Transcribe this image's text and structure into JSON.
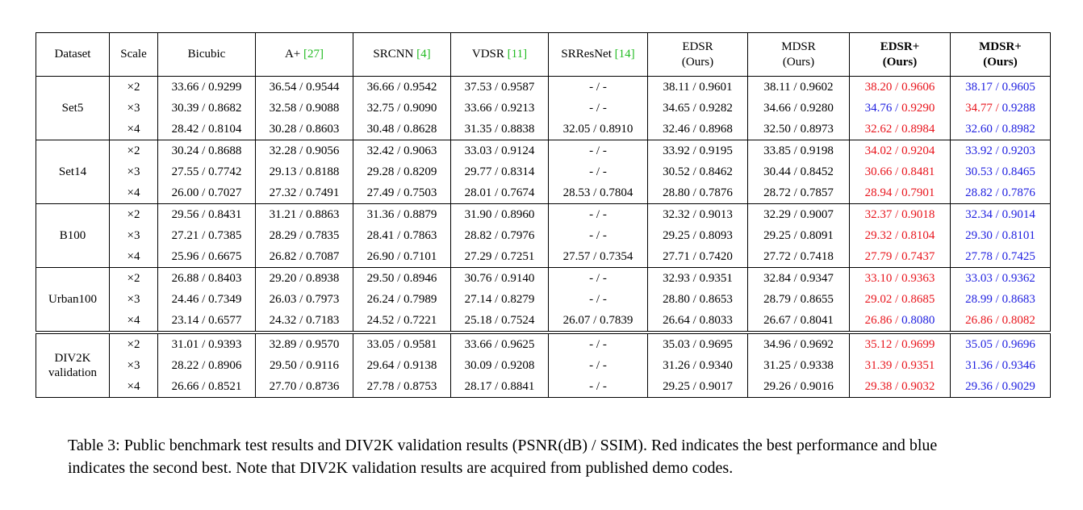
{
  "table": {
    "columns": [
      {
        "name": "Dataset"
      },
      {
        "name": "Scale"
      },
      {
        "name": "Bicubic"
      },
      {
        "name": "A+",
        "ref": "[27]"
      },
      {
        "name": "SRCNN",
        "ref": "[4]"
      },
      {
        "name": "VDSR",
        "ref": "[11]"
      },
      {
        "name": "SRResNet",
        "ref": "[14]"
      },
      {
        "name": "EDSR",
        "sub": "(Ours)"
      },
      {
        "name": "MDSR",
        "sub": "(Ours)"
      },
      {
        "name": "EDSR+",
        "sub": "(Ours)",
        "bold": true
      },
      {
        "name": "MDSR+",
        "sub": "(Ours)",
        "bold": true
      }
    ],
    "groups": [
      {
        "dataset": "Set5",
        "rows": [
          {
            "scale": "×2",
            "cells": [
              "33.66 / 0.9299",
              "36.54 / 0.9544",
              "36.66 / 0.9542",
              "37.53 / 0.9587",
              "- / -",
              "38.11 / 0.9601",
              "38.11 / 0.9602",
              [
                {
                  "text": "38.20 / ",
                  "color": "#e8141c"
                },
                {
                  "text": "0.9606",
                  "color": "#e8141c"
                }
              ],
              [
                {
                  "text": "38.17 / ",
                  "color": "#2020e0"
                },
                {
                  "text": "0.9605",
                  "color": "#2020e0"
                }
              ]
            ]
          },
          {
            "scale": "×3",
            "cells": [
              "30.39 / 0.8682",
              "32.58 / 0.9088",
              "32.75 / 0.9090",
              "33.66 / 0.9213",
              "- / -",
              "34.65 / 0.9282",
              "34.66 / 0.9280",
              [
                {
                  "text": "34.76 / ",
                  "color": "#2020e0"
                },
                {
                  "text": "0.9290",
                  "color": "#e8141c"
                }
              ],
              [
                {
                  "text": "34.77 / ",
                  "color": "#e8141c"
                },
                {
                  "text": "0.9288",
                  "color": "#2020e0"
                }
              ]
            ]
          },
          {
            "scale": "×4",
            "cells": [
              "28.42 / 0.8104",
              "30.28 / 0.8603",
              "30.48 / 0.8628",
              "31.35 / 0.8838",
              "32.05 / 0.8910",
              "32.46 / 0.8968",
              "32.50 / 0.8973",
              [
                {
                  "text": "32.62 / ",
                  "color": "#e8141c"
                },
                {
                  "text": "0.8984",
                  "color": "#e8141c"
                }
              ],
              [
                {
                  "text": "32.60 / ",
                  "color": "#2020e0"
                },
                {
                  "text": "0.8982",
                  "color": "#2020e0"
                }
              ]
            ]
          }
        ]
      },
      {
        "dataset": "Set14",
        "rows": [
          {
            "scale": "×2",
            "cells": [
              "30.24 / 0.8688",
              "32.28 / 0.9056",
              "32.42 / 0.9063",
              "33.03 / 0.9124",
              "- / -",
              "33.92 / 0.9195",
              "33.85 / 0.9198",
              [
                {
                  "text": "34.02 / ",
                  "color": "#e8141c"
                },
                {
                  "text": "0.9204",
                  "color": "#e8141c"
                }
              ],
              [
                {
                  "text": "33.92 / ",
                  "color": "#2020e0"
                },
                {
                  "text": "0.9203",
                  "color": "#2020e0"
                }
              ]
            ]
          },
          {
            "scale": "×3",
            "cells": [
              "27.55 / 0.7742",
              "29.13 / 0.8188",
              "29.28 / 0.8209",
              "29.77 / 0.8314",
              "- / -",
              "30.52 / 0.8462",
              "30.44 / 0.8452",
              [
                {
                  "text": "30.66 / ",
                  "color": "#e8141c"
                },
                {
                  "text": "0.8481",
                  "color": "#e8141c"
                }
              ],
              [
                {
                  "text": "30.53 / ",
                  "color": "#2020e0"
                },
                {
                  "text": "0.8465",
                  "color": "#2020e0"
                }
              ]
            ]
          },
          {
            "scale": "×4",
            "cells": [
              "26.00 / 0.7027",
              "27.32 / 0.7491",
              "27.49 / 0.7503",
              "28.01 / 0.7674",
              "28.53 / 0.7804",
              "28.80 / 0.7876",
              "28.72 / 0.7857",
              [
                {
                  "text": "28.94 / ",
                  "color": "#e8141c"
                },
                {
                  "text": "0.7901",
                  "color": "#e8141c"
                }
              ],
              [
                {
                  "text": "28.82 / ",
                  "color": "#2020e0"
                },
                {
                  "text": "0.7876",
                  "color": "#2020e0"
                }
              ]
            ]
          }
        ]
      },
      {
        "dataset": "B100",
        "rows": [
          {
            "scale": "×2",
            "cells": [
              "29.56 / 0.8431",
              "31.21 / 0.8863",
              "31.36 / 0.8879",
              "31.90 / 0.8960",
              "- / -",
              "32.32 / 0.9013",
              "32.29 / 0.9007",
              [
                {
                  "text": "32.37 / ",
                  "color": "#e8141c"
                },
                {
                  "text": "0.9018",
                  "color": "#e8141c"
                }
              ],
              [
                {
                  "text": "32.34 / ",
                  "color": "#2020e0"
                },
                {
                  "text": "0.9014",
                  "color": "#2020e0"
                }
              ]
            ]
          },
          {
            "scale": "×3",
            "cells": [
              "27.21 / 0.7385",
              "28.29 / 0.7835",
              "28.41 / 0.7863",
              "28.82 / 0.7976",
              "- / -",
              "29.25 / 0.8093",
              "29.25 / 0.8091",
              [
                {
                  "text": "29.32 / ",
                  "color": "#e8141c"
                },
                {
                  "text": "0.8104",
                  "color": "#e8141c"
                }
              ],
              [
                {
                  "text": "29.30 / ",
                  "color": "#2020e0"
                },
                {
                  "text": "0.8101",
                  "color": "#2020e0"
                }
              ]
            ]
          },
          {
            "scale": "×4",
            "cells": [
              "25.96 / 0.6675",
              "26.82 / 0.7087",
              "26.90 / 0.7101",
              "27.29 / 0.7251",
              "27.57 / 0.7354",
              "27.71 / 0.7420",
              "27.72 / 0.7418",
              [
                {
                  "text": "27.79 / ",
                  "color": "#e8141c"
                },
                {
                  "text": "0.7437",
                  "color": "#e8141c"
                }
              ],
              [
                {
                  "text": "27.78 / ",
                  "color": "#2020e0"
                },
                {
                  "text": "0.7425",
                  "color": "#2020e0"
                }
              ]
            ]
          }
        ]
      },
      {
        "dataset": "Urban100",
        "rows": [
          {
            "scale": "×2",
            "cells": [
              "26.88 / 0.8403",
              "29.20 / 0.8938",
              "29.50 / 0.8946",
              "30.76 / 0.9140",
              "- / -",
              "32.93 / 0.9351",
              "32.84 / 0.9347",
              [
                {
                  "text": "33.10 / ",
                  "color": "#e8141c"
                },
                {
                  "text": "0.9363",
                  "color": "#e8141c"
                }
              ],
              [
                {
                  "text": "33.03 / ",
                  "color": "#2020e0"
                },
                {
                  "text": "0.9362",
                  "color": "#2020e0"
                }
              ]
            ]
          },
          {
            "scale": "×3",
            "cells": [
              "24.46 / 0.7349",
              "26.03 / 0.7973",
              "26.24 / 0.7989",
              "27.14 / 0.8279",
              "- / -",
              "28.80 / 0.8653",
              "28.79 / 0.8655",
              [
                {
                  "text": "29.02 / ",
                  "color": "#e8141c"
                },
                {
                  "text": "0.8685",
                  "color": "#e8141c"
                }
              ],
              [
                {
                  "text": "28.99 / ",
                  "color": "#2020e0"
                },
                {
                  "text": "0.8683",
                  "color": "#2020e0"
                }
              ]
            ]
          },
          {
            "scale": "×4",
            "cells": [
              "23.14 / 0.6577",
              "24.32 / 0.7183",
              "24.52 / 0.7221",
              "25.18 / 0.7524",
              "26.07 / 0.7839",
              "26.64 / 0.8033",
              "26.67 / 0.8041",
              [
                {
                  "text": "26.86 / ",
                  "color": "#e8141c"
                },
                {
                  "text": "0.8080",
                  "color": "#2020e0"
                }
              ],
              [
                {
                  "text": "26.86 / ",
                  "color": "#e8141c"
                },
                {
                  "text": "0.8082",
                  "color": "#e8141c"
                }
              ]
            ]
          }
        ]
      },
      {
        "dataset": "DIV2K validation",
        "rows": [
          {
            "scale": "×2",
            "cells": [
              "31.01 / 0.9393",
              "32.89 / 0.9570",
              "33.05 / 0.9581",
              "33.66 / 0.9625",
              "- / -",
              "35.03 / 0.9695",
              "34.96 / 0.9692",
              [
                {
                  "text": "35.12 / ",
                  "color": "#e8141c"
                },
                {
                  "text": "0.9699",
                  "color": "#e8141c"
                }
              ],
              [
                {
                  "text": "35.05 / ",
                  "color": "#2020e0"
                },
                {
                  "text": "0.9696",
                  "color": "#2020e0"
                }
              ]
            ]
          },
          {
            "scale": "×3",
            "cells": [
              "28.22 / 0.8906",
              "29.50 / 0.9116",
              "29.64 / 0.9138",
              "30.09 / 0.9208",
              "- / -",
              "31.26 / 0.9340",
              "31.25 / 0.9338",
              [
                {
                  "text": "31.39 / ",
                  "color": "#e8141c"
                },
                {
                  "text": "0.9351",
                  "color": "#e8141c"
                }
              ],
              [
                {
                  "text": "31.36 / ",
                  "color": "#2020e0"
                },
                {
                  "text": "0.9346",
                  "color": "#2020e0"
                }
              ]
            ]
          },
          {
            "scale": "×4",
            "cells": [
              "26.66 / 0.8521",
              "27.70 / 0.8736",
              "27.78 / 0.8753",
              "28.17 / 0.8841",
              "- / -",
              "29.25 / 0.9017",
              "29.26 / 0.9016",
              [
                {
                  "text": "29.38 / ",
                  "color": "#e8141c"
                },
                {
                  "text": "0.9032",
                  "color": "#e8141c"
                }
              ],
              [
                {
                  "text": "29.36 / ",
                  "color": "#2020e0"
                },
                {
                  "text": "0.9029",
                  "color": "#2020e0"
                }
              ]
            ]
          }
        ]
      }
    ]
  },
  "caption": "Table 3: Public benchmark test results and DIV2K validation results (PSNR(dB) / SSIM). Red indicates the best performance and blue indicates the second best. Note that DIV2K validation results are acquired from published demo codes."
}
